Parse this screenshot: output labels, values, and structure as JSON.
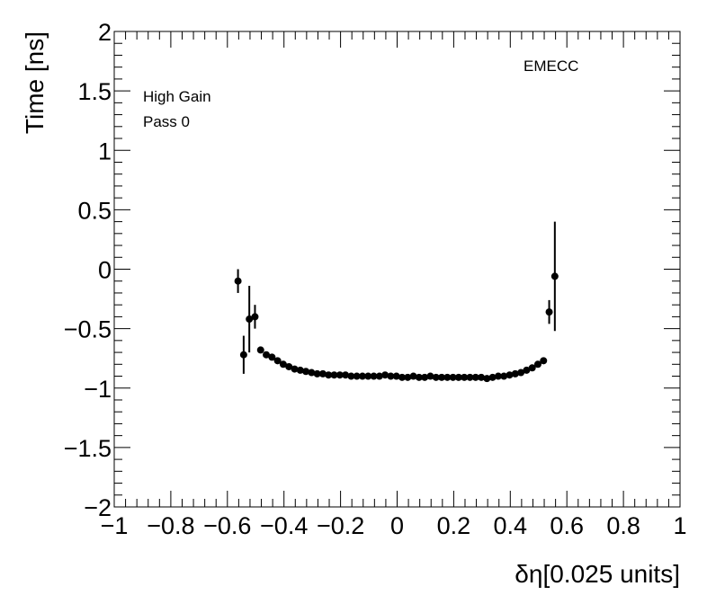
{
  "chart_data": {
    "type": "scatter",
    "title": "",
    "xlabel": "δη[0.025 units]",
    "ylabel": "Time [ns]",
    "xlim": [
      -1,
      1
    ],
    "ylim": [
      -2,
      2
    ],
    "x_ticks": [
      "−1",
      "−0.8",
      "−0.6",
      "−0.4",
      "−0.2",
      "0",
      "0.2",
      "0.4",
      "0.6",
      "0.8",
      "1"
    ],
    "y_ticks": [
      "−2",
      "−1.5",
      "−1",
      "−0.5",
      "0",
      "0.5",
      "1",
      "1.5",
      "2"
    ],
    "grid": false,
    "annotations": [
      "High Gain",
      "Pass 0",
      "EMECC"
    ],
    "series": [
      {
        "points": [
          {
            "x": -0.5625,
            "y": -0.1,
            "err": 0.1
          },
          {
            "x": -0.5425,
            "y": -0.72,
            "err": 0.16
          },
          {
            "x": -0.5225,
            "y": -0.42,
            "err": 0.28
          },
          {
            "x": -0.5025,
            "y": -0.4,
            "err": 0.1
          },
          {
            "x": -0.4825,
            "y": -0.68,
            "err": 0.01
          },
          {
            "x": -0.4625,
            "y": -0.72,
            "err": 0.01
          },
          {
            "x": -0.4425,
            "y": -0.74,
            "err": 0.01
          },
          {
            "x": -0.4225,
            "y": -0.77,
            "err": 0.01
          },
          {
            "x": -0.4025,
            "y": -0.8,
            "err": 0.01
          },
          {
            "x": -0.3825,
            "y": -0.82,
            "err": 0.01
          },
          {
            "x": -0.3625,
            "y": -0.84,
            "err": 0.01
          },
          {
            "x": -0.3425,
            "y": -0.85,
            "err": 0.01
          },
          {
            "x": -0.3225,
            "y": -0.86,
            "err": 0.01
          },
          {
            "x": -0.3025,
            "y": -0.87,
            "err": 0.01
          },
          {
            "x": -0.2825,
            "y": -0.88,
            "err": 0.01
          },
          {
            "x": -0.2625,
            "y": -0.88,
            "err": 0.01
          },
          {
            "x": -0.2425,
            "y": -0.89,
            "err": 0.01
          },
          {
            "x": -0.2225,
            "y": -0.89,
            "err": 0.01
          },
          {
            "x": -0.2025,
            "y": -0.89,
            "err": 0.01
          },
          {
            "x": -0.1825,
            "y": -0.89,
            "err": 0.01
          },
          {
            "x": -0.1625,
            "y": -0.9,
            "err": 0.01
          },
          {
            "x": -0.1425,
            "y": -0.9,
            "err": 0.01
          },
          {
            "x": -0.1225,
            "y": -0.9,
            "err": 0.01
          },
          {
            "x": -0.1025,
            "y": -0.9,
            "err": 0.01
          },
          {
            "x": -0.0825,
            "y": -0.9,
            "err": 0.01
          },
          {
            "x": -0.0625,
            "y": -0.9,
            "err": 0.01
          },
          {
            "x": -0.0425,
            "y": -0.89,
            "err": 0.01
          },
          {
            "x": -0.0225,
            "y": -0.9,
            "err": 0.01
          },
          {
            "x": -0.0025,
            "y": -0.9,
            "err": 0.01
          },
          {
            "x": 0.0175,
            "y": -0.91,
            "err": 0.01
          },
          {
            "x": 0.0375,
            "y": -0.91,
            "err": 0.01
          },
          {
            "x": 0.0575,
            "y": -0.9,
            "err": 0.01
          },
          {
            "x": 0.0775,
            "y": -0.91,
            "err": 0.01
          },
          {
            "x": 0.0975,
            "y": -0.91,
            "err": 0.01
          },
          {
            "x": 0.1175,
            "y": -0.9,
            "err": 0.01
          },
          {
            "x": 0.1375,
            "y": -0.91,
            "err": 0.01
          },
          {
            "x": 0.1575,
            "y": -0.91,
            "err": 0.01
          },
          {
            "x": 0.1775,
            "y": -0.91,
            "err": 0.01
          },
          {
            "x": 0.1975,
            "y": -0.91,
            "err": 0.01
          },
          {
            "x": 0.2175,
            "y": -0.91,
            "err": 0.01
          },
          {
            "x": 0.2375,
            "y": -0.91,
            "err": 0.01
          },
          {
            "x": 0.2575,
            "y": -0.91,
            "err": 0.01
          },
          {
            "x": 0.2775,
            "y": -0.91,
            "err": 0.01
          },
          {
            "x": 0.2975,
            "y": -0.91,
            "err": 0.01
          },
          {
            "x": 0.3175,
            "y": -0.92,
            "err": 0.01
          },
          {
            "x": 0.3375,
            "y": -0.91,
            "err": 0.01
          },
          {
            "x": 0.3575,
            "y": -0.9,
            "err": 0.01
          },
          {
            "x": 0.3775,
            "y": -0.9,
            "err": 0.01
          },
          {
            "x": 0.3975,
            "y": -0.89,
            "err": 0.01
          },
          {
            "x": 0.4175,
            "y": -0.88,
            "err": 0.01
          },
          {
            "x": 0.4375,
            "y": -0.87,
            "err": 0.01
          },
          {
            "x": 0.4575,
            "y": -0.85,
            "err": 0.01
          },
          {
            "x": 0.4775,
            "y": -0.83,
            "err": 0.01
          },
          {
            "x": 0.4975,
            "y": -0.8,
            "err": 0.01
          },
          {
            "x": 0.5175,
            "y": -0.77,
            "err": 0.01
          },
          {
            "x": 0.5375,
            "y": -0.36,
            "err": 0.1
          },
          {
            "x": 0.5575,
            "y": -0.06,
            "err": 0.46
          }
        ]
      }
    ]
  }
}
